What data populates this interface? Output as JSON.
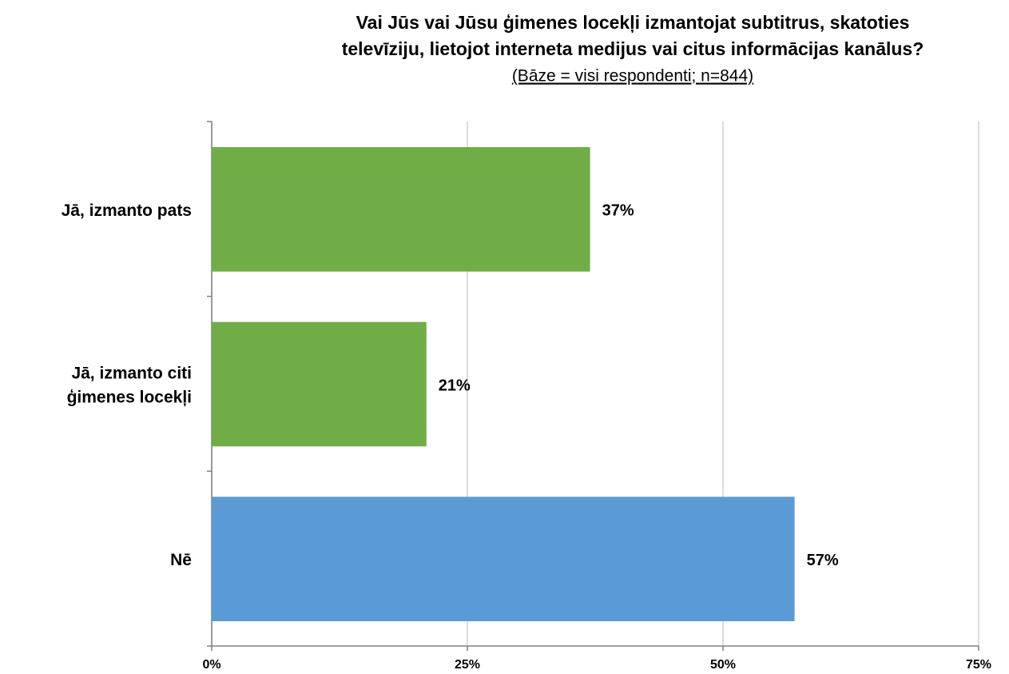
{
  "chart_data": {
    "type": "hbar",
    "title": [
      "Vai Jūs vai Jūsu ģimenes locekļi izmantojat subtitrus, skatoties",
      "televīziju, lietojot interneta medijus vai citus informācijas kanālus?"
    ],
    "subtitle": "(Bāze = visi respondenti;  n=844)",
    "categories": [
      [
        "Jā, izmanto pats"
      ],
      [
        "Jā, izmanto citi",
        "ģimenes locekļi"
      ],
      [
        "Nē"
      ]
    ],
    "values": [
      37,
      21,
      57
    ],
    "value_labels": [
      "37%",
      "21%",
      "57%"
    ],
    "colors": [
      "#70ad47",
      "#70ad47",
      "#5b9bd5"
    ],
    "xlim": [
      0,
      75
    ],
    "xticks": [
      {
        "value": 0,
        "label": "0%"
      },
      {
        "value": 25,
        "label": "25%"
      },
      {
        "value": 50,
        "label": "50%"
      },
      {
        "value": 75,
        "label": "75%"
      }
    ],
    "grid": true
  }
}
